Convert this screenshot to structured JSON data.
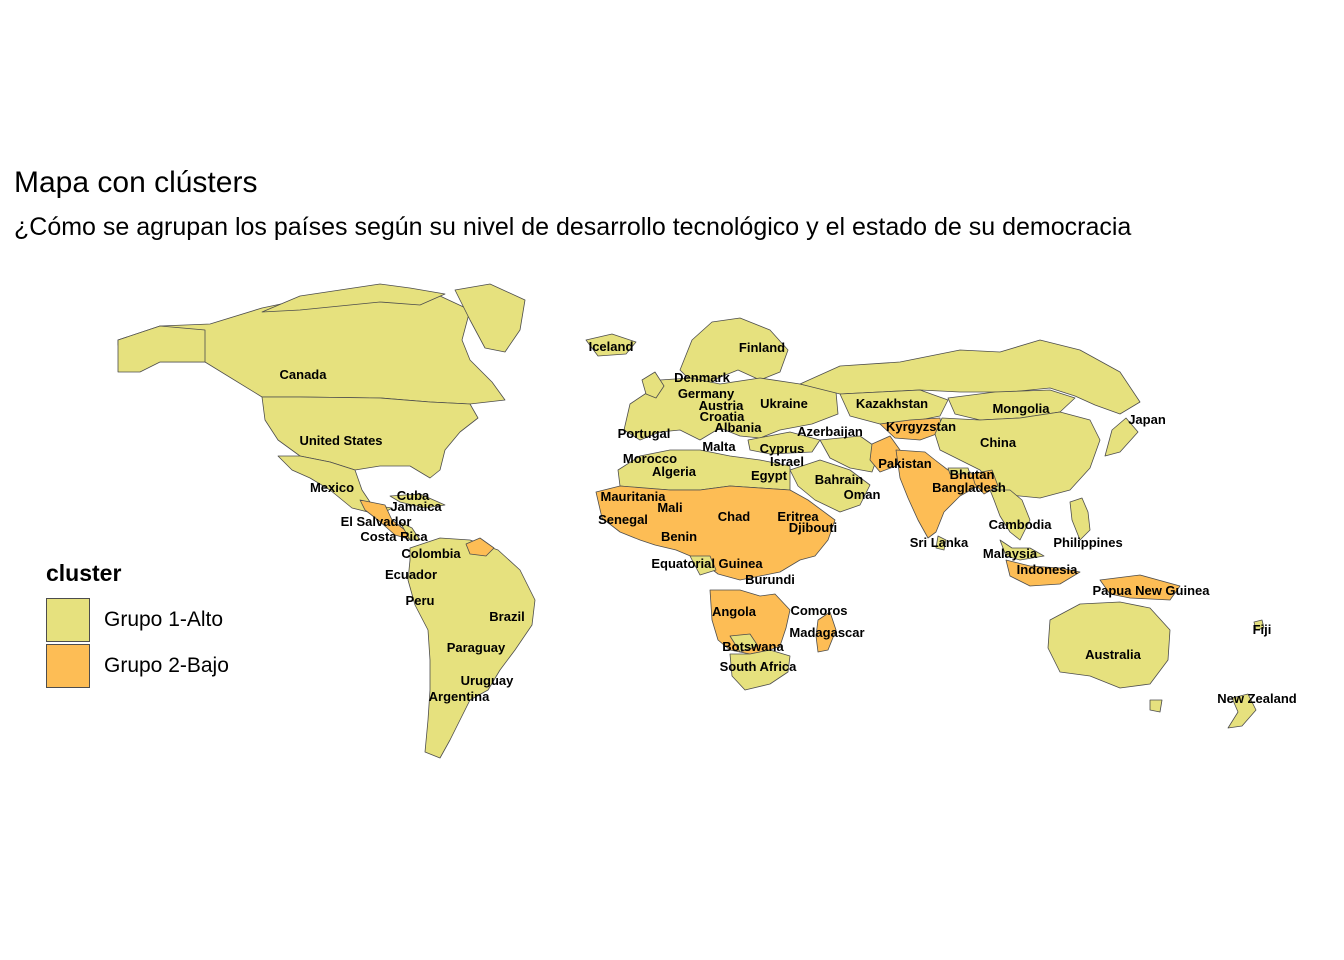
{
  "title": "Mapa con clústers",
  "subtitle": "¿Cómo se agrupan los países según su nivel de desarrollo tecnológico y el estado de su democracia",
  "legend": {
    "title": "cluster",
    "items": [
      {
        "label": "Grupo 1-Alto",
        "color": "#e6e17e"
      },
      {
        "label": "Grupo 2-Bajo",
        "color": "#fdbd55"
      }
    ]
  },
  "colors": {
    "alto": "#e6e17e",
    "bajo": "#fdbd55",
    "border": "#4d4d4d"
  },
  "countries": [
    {
      "name": "Canada",
      "cluster": "alto"
    },
    {
      "name": "United States",
      "cluster": "alto"
    },
    {
      "name": "Mexico",
      "cluster": "alto"
    },
    {
      "name": "Cuba",
      "cluster": "alto"
    },
    {
      "name": "Jamaica",
      "cluster": "alto"
    },
    {
      "name": "El Salvador",
      "cluster": "bajo"
    },
    {
      "name": "Costa Rica",
      "cluster": "alto"
    },
    {
      "name": "Colombia",
      "cluster": "alto"
    },
    {
      "name": "Ecuador",
      "cluster": "alto"
    },
    {
      "name": "Peru",
      "cluster": "alto"
    },
    {
      "name": "Brazil",
      "cluster": "alto"
    },
    {
      "name": "Paraguay",
      "cluster": "alto"
    },
    {
      "name": "Uruguay",
      "cluster": "alto"
    },
    {
      "name": "Argentina",
      "cluster": "alto"
    },
    {
      "name": "Iceland",
      "cluster": "alto"
    },
    {
      "name": "Finland",
      "cluster": "alto"
    },
    {
      "name": "Denmark",
      "cluster": "alto"
    },
    {
      "name": "Germany",
      "cluster": "alto"
    },
    {
      "name": "Austria",
      "cluster": "alto"
    },
    {
      "name": "Croatia",
      "cluster": "alto"
    },
    {
      "name": "Albania",
      "cluster": "alto"
    },
    {
      "name": "Ukraine",
      "cluster": "alto"
    },
    {
      "name": "Portugal",
      "cluster": "alto"
    },
    {
      "name": "Malta",
      "cluster": "alto"
    },
    {
      "name": "Cyprus",
      "cluster": "alto"
    },
    {
      "name": "Israel",
      "cluster": "alto"
    },
    {
      "name": "Azerbaijan",
      "cluster": "alto"
    },
    {
      "name": "Kazakhstan",
      "cluster": "alto"
    },
    {
      "name": "Kyrgyzstan",
      "cluster": "bajo"
    },
    {
      "name": "Mongolia",
      "cluster": "alto"
    },
    {
      "name": "China",
      "cluster": "alto"
    },
    {
      "name": "Japan",
      "cluster": "alto"
    },
    {
      "name": "Morocco",
      "cluster": "alto"
    },
    {
      "name": "Algeria",
      "cluster": "alto"
    },
    {
      "name": "Egypt",
      "cluster": "alto"
    },
    {
      "name": "Bahrain",
      "cluster": "alto"
    },
    {
      "name": "Oman",
      "cluster": "alto"
    },
    {
      "name": "Pakistan",
      "cluster": "bajo"
    },
    {
      "name": "Bhutan",
      "cluster": "alto"
    },
    {
      "name": "Bangladesh",
      "cluster": "bajo"
    },
    {
      "name": "Mauritania",
      "cluster": "bajo"
    },
    {
      "name": "Mali",
      "cluster": "bajo"
    },
    {
      "name": "Senegal",
      "cluster": "bajo"
    },
    {
      "name": "Chad",
      "cluster": "bajo"
    },
    {
      "name": "Eritrea",
      "cluster": "bajo"
    },
    {
      "name": "Djibouti",
      "cluster": "bajo"
    },
    {
      "name": "Benin",
      "cluster": "bajo"
    },
    {
      "name": "Equatorial Guinea",
      "cluster": "bajo"
    },
    {
      "name": "Burundi",
      "cluster": "bajo"
    },
    {
      "name": "Angola",
      "cluster": "bajo"
    },
    {
      "name": "Comoros",
      "cluster": "bajo"
    },
    {
      "name": "Madagascar",
      "cluster": "bajo"
    },
    {
      "name": "Botswana",
      "cluster": "alto"
    },
    {
      "name": "South Africa",
      "cluster": "alto"
    },
    {
      "name": "Cambodia",
      "cluster": "alto"
    },
    {
      "name": "Philippines",
      "cluster": "alto"
    },
    {
      "name": "Sri Lanka",
      "cluster": "alto"
    },
    {
      "name": "Malaysia",
      "cluster": "alto"
    },
    {
      "name": "Indonesia",
      "cluster": "bajo"
    },
    {
      "name": "Papua New Guinea",
      "cluster": "bajo"
    },
    {
      "name": "Australia",
      "cluster": "alto"
    },
    {
      "name": "Fiji",
      "cluster": "alto"
    },
    {
      "name": "New Zealand",
      "cluster": "alto"
    }
  ]
}
